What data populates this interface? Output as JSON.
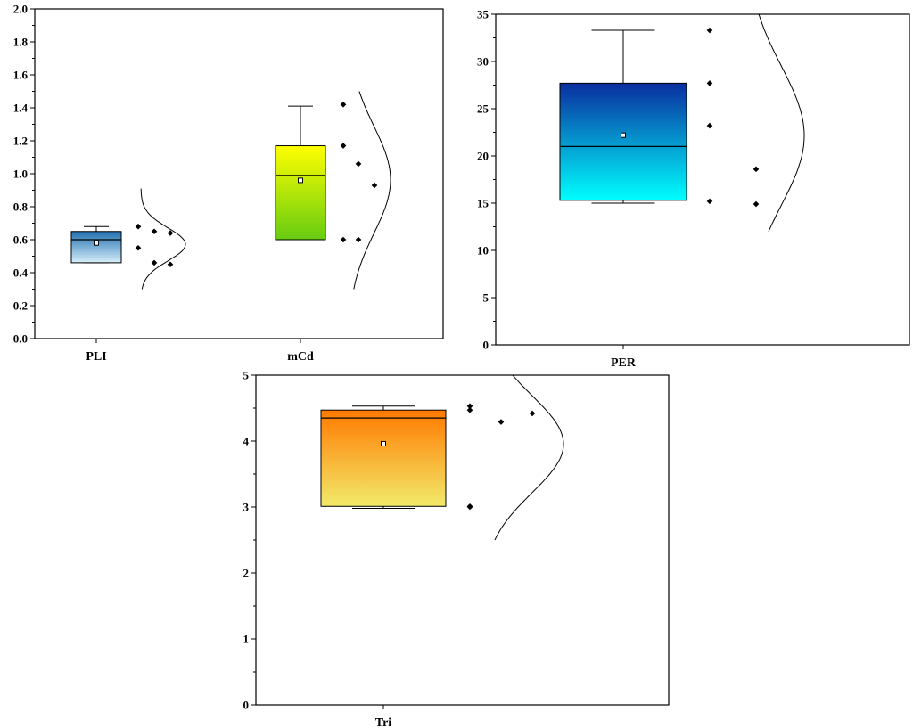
{
  "chart_data": [
    {
      "type": "box",
      "ylim": [
        0,
        2.0
      ],
      "yticks": [
        "0.0",
        "0.2",
        "0.4",
        "0.6",
        "0.8",
        "1.0",
        "1.2",
        "1.4",
        "1.6",
        "1.8",
        "2.0"
      ],
      "categories": [
        "PLI",
        "mCd"
      ],
      "boxes": [
        {
          "category": "PLI",
          "whisker_low": 0.46,
          "q1": 0.46,
          "median": 0.6,
          "q3": 0.65,
          "whisker_high": 0.68,
          "mean": 0.58,
          "points": [
            0.68,
            0.46,
            0.64,
            0.55,
            0.65,
            0.45
          ],
          "color_top": "#1f6fb0",
          "color_bottom": "#d6eefa"
        },
        {
          "category": "mCd",
          "whisker_low": 0.6,
          "q1": 0.6,
          "median": 0.99,
          "q3": 1.17,
          "whisker_high": 1.41,
          "mean": 0.96,
          "points": [
            1.42,
            1.17,
            0.6,
            1.06,
            0.6,
            0.93
          ],
          "color_top": "#ffff00",
          "color_bottom": "#66cc11"
        }
      ]
    },
    {
      "type": "box",
      "ylim": [
        0,
        35
      ],
      "yticks": [
        "0",
        "5",
        "10",
        "15",
        "20",
        "25",
        "30",
        "35"
      ],
      "categories": [
        "PER"
      ],
      "boxes": [
        {
          "category": "PER",
          "whisker_low": 15,
          "q1": 15.3,
          "median": 21,
          "q3": 27.7,
          "whisker_high": 33.3,
          "mean": 22.2,
          "points": [
            33.3,
            27.7,
            23.2,
            15.2,
            18.6,
            14.9
          ],
          "color_top": "#0a2e9e",
          "color_bottom": "#00ffff"
        }
      ]
    },
    {
      "type": "box",
      "ylim": [
        0,
        5
      ],
      "yticks": [
        "0",
        "1",
        "2",
        "3",
        "4",
        "5"
      ],
      "categories": [
        "Tri"
      ],
      "boxes": [
        {
          "category": "Tri",
          "whisker_low": 2.98,
          "q1": 3.01,
          "median": 4.35,
          "q3": 4.47,
          "whisker_high": 4.53,
          "mean": 3.96,
          "points": [
            4.53,
            4.47,
            3.0,
            3.01,
            4.29,
            4.42
          ],
          "color_top": "#ff7a00",
          "color_bottom": "#f2ea6a"
        }
      ]
    }
  ]
}
